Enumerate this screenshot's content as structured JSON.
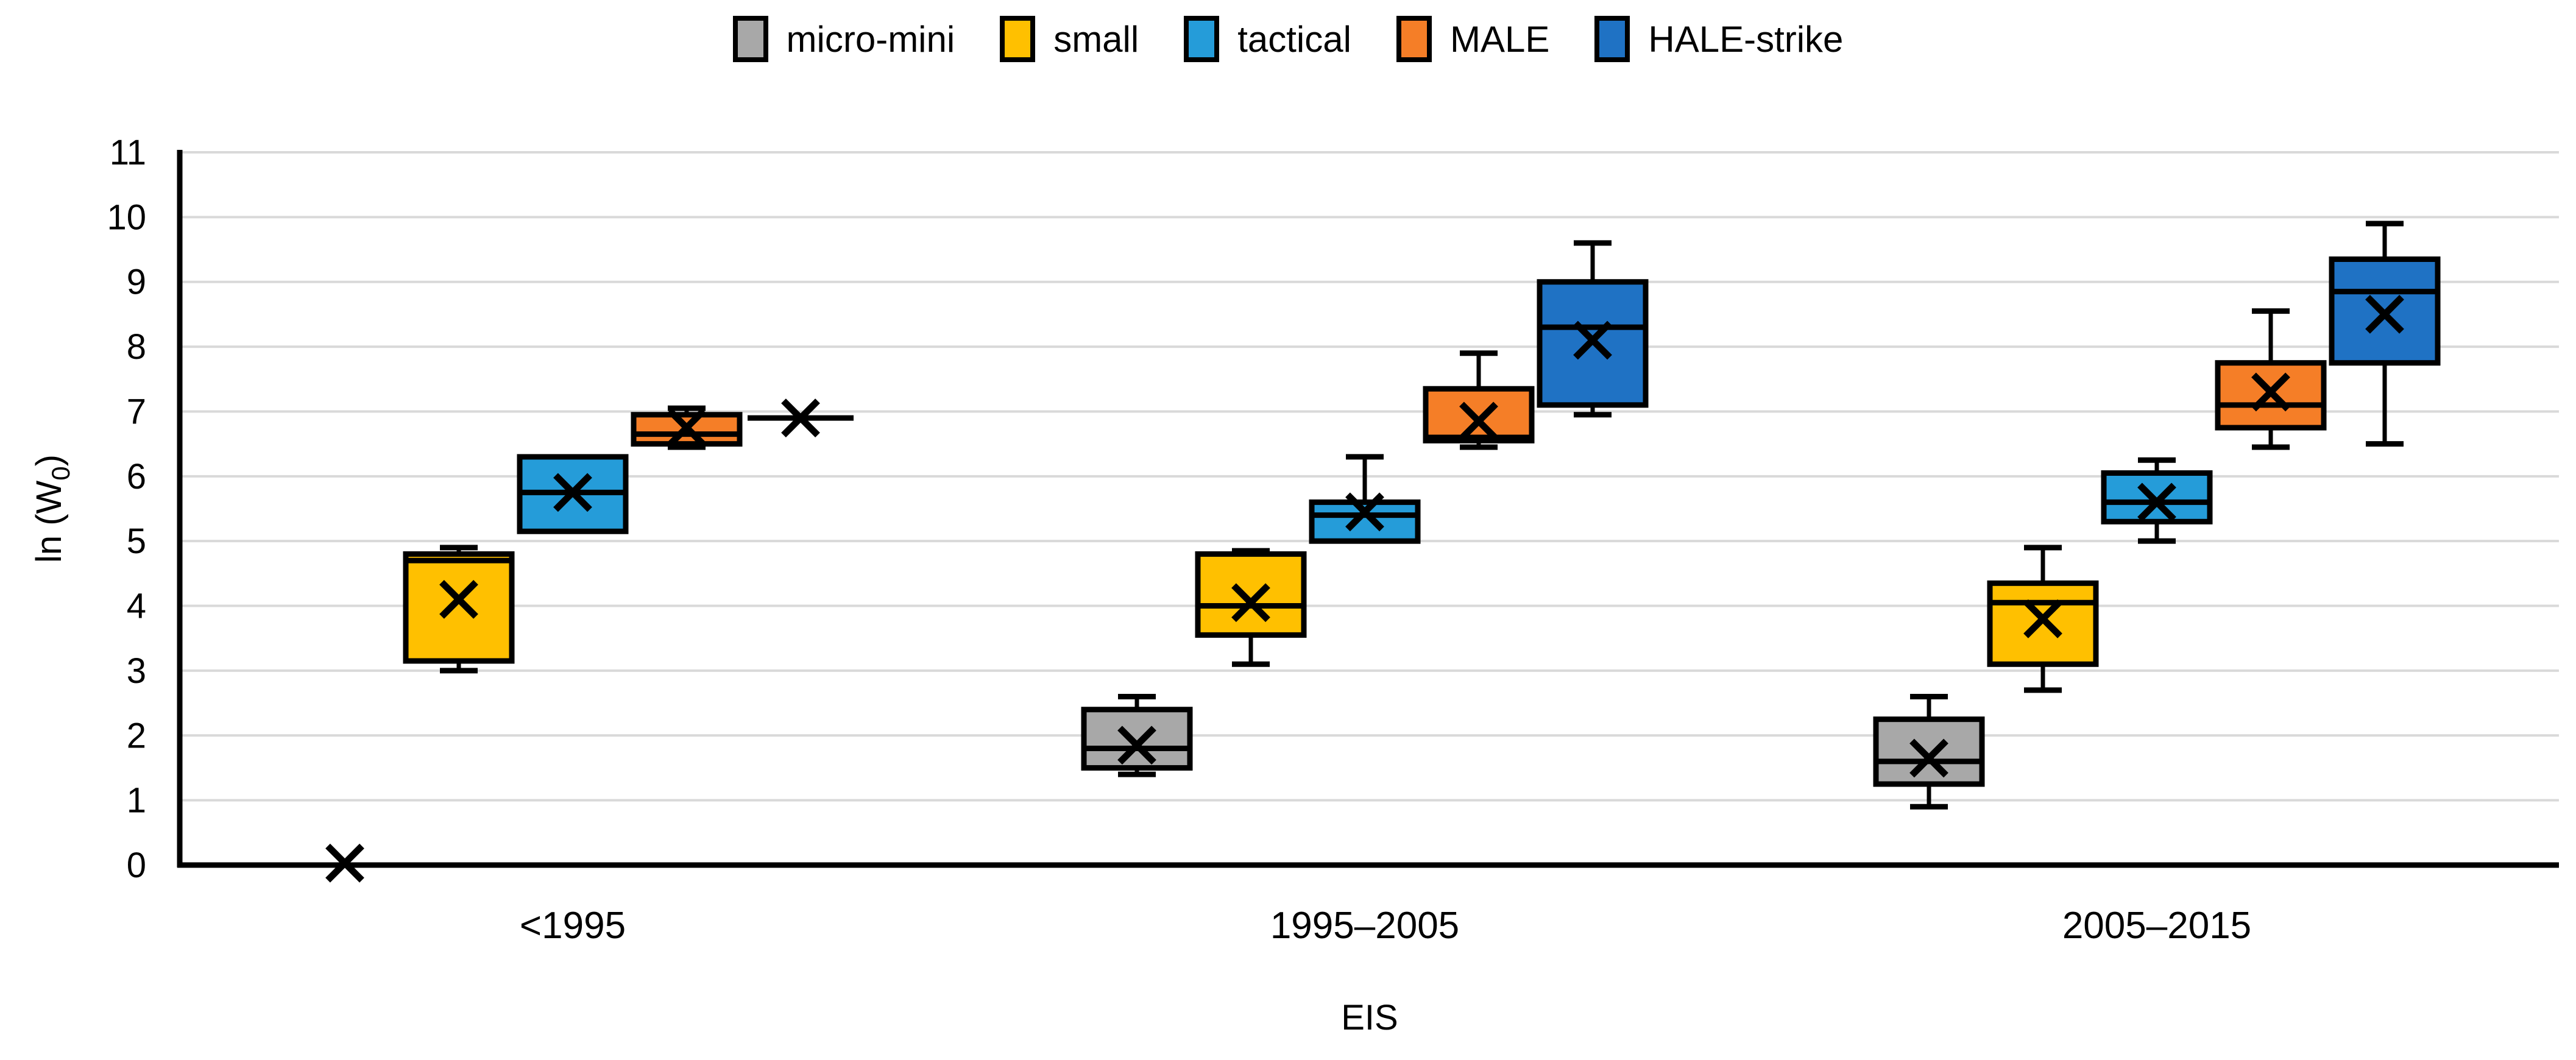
{
  "page": {
    "background": "#FFFFFF"
  },
  "chart_data": {
    "type": "boxplot",
    "title": "",
    "xlabel": "EIS",
    "ylabel": "ln (W₀)",
    "ylabel_parts": {
      "prefix": "ln (W",
      "subscript": "0",
      "suffix": ")"
    },
    "ylim": [
      0,
      11
    ],
    "yticks": [
      "0",
      "1",
      "2",
      "3",
      "4",
      "5",
      "6",
      "7",
      "8",
      "9",
      "10",
      "11"
    ],
    "grid": "horizontal",
    "legend_position": "top-center",
    "categories": [
      "<1995",
      "1995–2005",
      "2005–2015"
    ],
    "colors": {
      "grid": "#D9D9D9",
      "axis": "#000000",
      "box_border": "#000000",
      "mean_marker": "#000000"
    },
    "series": [
      {
        "name": "micro-mini",
        "color": "#A8A8A8",
        "boxes": [
          {
            "type": "point",
            "mean": 0.03
          },
          {
            "type": "box",
            "min": 1.4,
            "q1": 1.5,
            "median": 1.8,
            "q3": 2.4,
            "max": 2.6,
            "mean": 1.85
          },
          {
            "type": "box",
            "min": 0.9,
            "q1": 1.25,
            "median": 1.6,
            "q3": 2.25,
            "max": 2.6,
            "mean": 1.65
          }
        ]
      },
      {
        "name": "small",
        "color": "#FFC000",
        "boxes": [
          {
            "type": "box",
            "min": 3.0,
            "q1": 3.15,
            "median": 4.7,
            "q3": 4.8,
            "max": 4.9,
            "mean": 4.1
          },
          {
            "type": "box",
            "min": 3.1,
            "q1": 3.55,
            "median": 4.0,
            "q3": 4.8,
            "max": 4.85,
            "mean": 4.05
          },
          {
            "type": "box",
            "min": 2.7,
            "q1": 3.1,
            "median": 4.05,
            "q3": 4.35,
            "max": 4.9,
            "mean": 3.8
          }
        ]
      },
      {
        "name": "tactical",
        "color": "#259CD9",
        "boxes": [
          {
            "type": "box",
            "min": 5.15,
            "q1": 5.15,
            "median": 5.75,
            "q3": 6.3,
            "max": 6.3,
            "mean": 5.75
          },
          {
            "type": "box",
            "min": 5.0,
            "q1": 5.0,
            "median": 5.4,
            "q3": 5.6,
            "max": 6.3,
            "mean": 5.45
          },
          {
            "type": "box",
            "min": 5.0,
            "q1": 5.3,
            "median": 5.6,
            "q3": 6.05,
            "max": 6.25,
            "mean": 5.6
          }
        ]
      },
      {
        "name": "MALE",
        "color": "#F57E27",
        "boxes": [
          {
            "type": "box",
            "min": 6.45,
            "q1": 6.5,
            "median": 6.65,
            "q3": 6.95,
            "max": 7.05,
            "mean": 6.75
          },
          {
            "type": "box",
            "min": 6.45,
            "q1": 6.55,
            "median": 6.6,
            "q3": 7.35,
            "max": 7.9,
            "mean": 6.85
          },
          {
            "type": "box",
            "min": 6.45,
            "q1": 6.75,
            "median": 7.1,
            "q3": 7.75,
            "max": 8.55,
            "mean": 7.3
          }
        ]
      },
      {
        "name": "HALE-strike",
        "color": "#1F72C4",
        "boxes": [
          {
            "type": "line",
            "value": 6.9,
            "mean": 6.9
          },
          {
            "type": "box",
            "min": 6.95,
            "q1": 7.1,
            "median": 8.3,
            "q3": 9.0,
            "max": 9.6,
            "mean": 8.1
          },
          {
            "type": "box",
            "min": 6.5,
            "q1": 7.75,
            "median": 8.85,
            "q3": 9.35,
            "max": 9.9,
            "mean": 8.5
          }
        ]
      }
    ]
  }
}
